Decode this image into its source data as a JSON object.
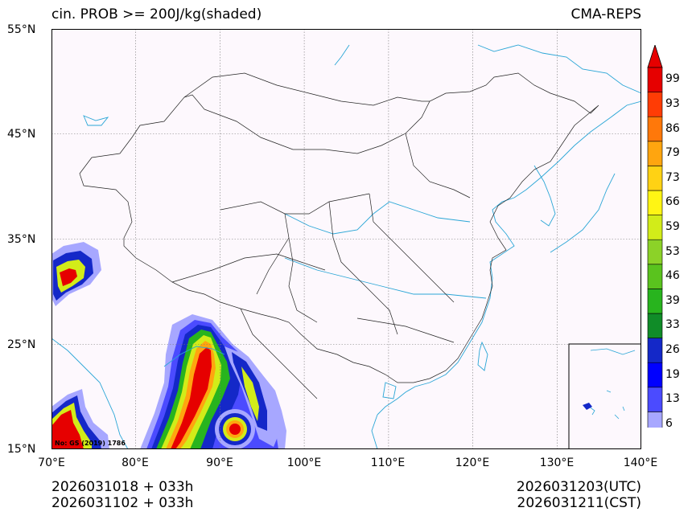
{
  "header": {
    "title_left": "cin. PROB >= 200J/kg(shaded)",
    "title_right": "CMA-REPS"
  },
  "axes": {
    "lat_labels": [
      "55°N",
      "45°N",
      "35°N",
      "25°N",
      "15°N"
    ],
    "lon_labels": [
      "70°E",
      "80°E",
      "90°E",
      "100°E",
      "110°E",
      "120°E",
      "130°E",
      "140°E"
    ],
    "lat_range": [
      15,
      55
    ],
    "lon_range": [
      70,
      140
    ]
  },
  "colorbar": {
    "levels": [
      "6",
      "13",
      "19",
      "26",
      "33",
      "39",
      "46",
      "53",
      "59",
      "66",
      "73",
      "79",
      "86",
      "93",
      "99"
    ],
    "colors": [
      "#a7a7ff",
      "#4b4bff",
      "#0000ff",
      "#1428c8",
      "#108c28",
      "#28b41e",
      "#5ac31e",
      "#8cd228",
      "#d2ec19",
      "#fff514",
      "#ffd214",
      "#ffa50f",
      "#ff780a",
      "#ff3c05",
      "#e60000"
    ],
    "over_color": "#e60000",
    "under_color": "#ffffff"
  },
  "map": {
    "background": "#fdf8fd",
    "coast_color": "#2aa6d6",
    "border_color": "#222222",
    "credit": "No: GS (2019) 1786"
  },
  "footer": {
    "init_utc": "2026031018  +  033h",
    "init_cst": "2026031102  +  033h",
    "valid_utc": "2026031203(UTC)",
    "valid_cst": "2026031211(CST)"
  }
}
